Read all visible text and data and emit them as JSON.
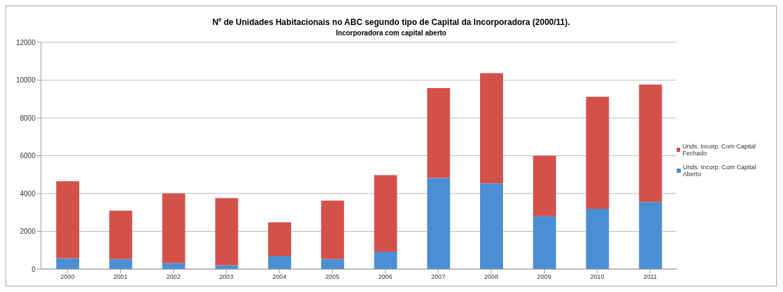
{
  "chart_data": {
    "type": "bar",
    "title": "Nº de Unidades Habitacionais no ABC segundo tipo de Capital da Incorporadora (2000/11).",
    "subtitle": "Incorporadora com capital aberto",
    "categories": [
      "2000",
      "2001",
      "2002",
      "2003",
      "2004",
      "2005",
      "2006",
      "2007",
      "2008",
      "2009",
      "2010",
      "2011"
    ],
    "series": [
      {
        "name": "Unds. Incorp. Com Capital Aberto",
        "color": "#4a8fd4",
        "values": [
          570,
          530,
          320,
          200,
          700,
          530,
          920,
          4830,
          4540,
          2800,
          3190,
          3550
        ]
      },
      {
        "name": "Unds. Incorp. Com Capital Fechado",
        "color": "#d4514a",
        "values": [
          4080,
          2560,
          3690,
          3560,
          1780,
          3090,
          4050,
          4750,
          5830,
          3200,
          5930,
          6210
        ]
      }
    ],
    "stacked": true,
    "ylim": [
      0,
      12000
    ],
    "yticks": [
      0,
      2000,
      4000,
      6000,
      8000,
      10000,
      12000
    ],
    "grid": "y",
    "legend": "right"
  }
}
